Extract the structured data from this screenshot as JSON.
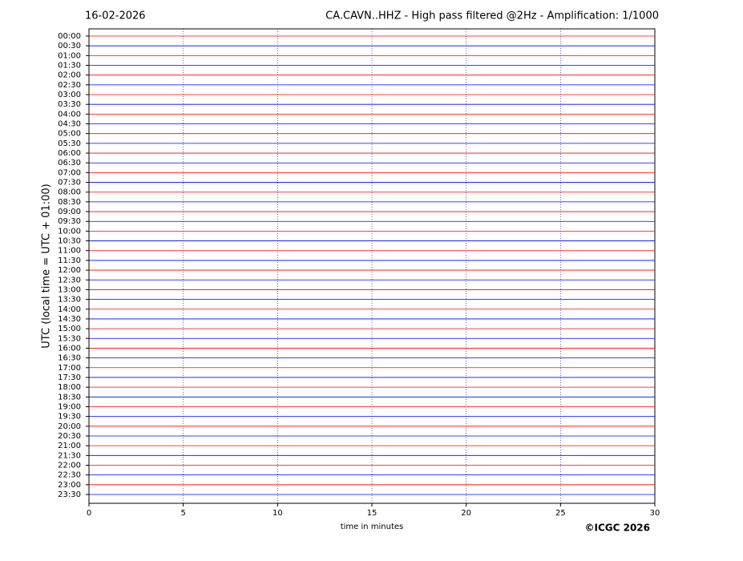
{
  "chart_data": {
    "type": "helicorder",
    "date": "16-02-2026",
    "title": "CA.CAVN..HHZ - High pass filtered @2Hz - Amplification: 1/1000",
    "xlabel": "time in minutes",
    "ylabel": "UTC (local time = UTC + 01:00)",
    "copyright": "©ICGC 2026",
    "categories": [
      "00:00",
      "00:30",
      "01:00",
      "01:30",
      "02:00",
      "02:30",
      "03:00",
      "03:30",
      "04:00",
      "04:30",
      "05:00",
      "05:30",
      "06:00",
      "06:30",
      "07:00",
      "07:30",
      "08:00",
      "08:30",
      "09:00",
      "09:30",
      "10:00",
      "10:30",
      "11:00",
      "11:30",
      "12:00",
      "12:30",
      "13:00",
      "13:30",
      "14:00",
      "14:30",
      "15:00",
      "15:30",
      "16:00",
      "16:30",
      "17:00",
      "17:30",
      "18:00",
      "18:30",
      "19:00",
      "19:30",
      "20:00",
      "20:30",
      "21:00",
      "21:30",
      "22:00",
      "22:30",
      "23:00",
      "23:30"
    ],
    "colors": [
      "#ff0000",
      "#0000ff"
    ],
    "xlim": [
      0,
      30
    ],
    "xticks": [
      0,
      5,
      10,
      15,
      20,
      25,
      30
    ],
    "grid": true
  }
}
